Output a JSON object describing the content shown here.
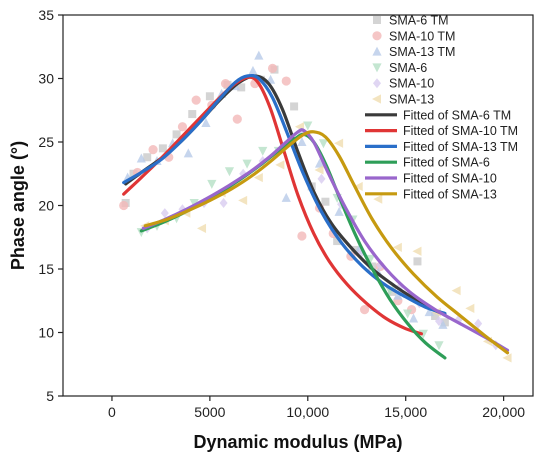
{
  "chart_data": {
    "type": "scatter",
    "xlabel": "Dynamic modulus (MPa)",
    "ylabel": "Phase angle (°)",
    "xlim": [
      -2500,
      21500
    ],
    "ylim": [
      5,
      35
    ],
    "xticks": [
      0,
      5000,
      10000,
      15000,
      20000
    ],
    "xtick_labels": [
      "0",
      "5000",
      "10,000",
      "15,000",
      "20,000"
    ],
    "yticks": [
      5,
      10,
      15,
      20,
      25,
      30,
      35
    ],
    "ytick_labels": [
      "5",
      "10",
      "15",
      "20",
      "25",
      "30",
      "35"
    ],
    "grid": false,
    "legend_position": "top-right",
    "scatter_series": [
      {
        "name": "SMA-6 TM",
        "color": "#c9c9c9",
        "marker": "square",
        "points": [
          [
            700,
            20.2
          ],
          [
            1100,
            22.5
          ],
          [
            1800,
            23.8
          ],
          [
            2600,
            24.5
          ],
          [
            3300,
            25.6
          ],
          [
            4100,
            27.2
          ],
          [
            5000,
            28.6
          ],
          [
            5900,
            29.5
          ],
          [
            6600,
            29.3
          ],
          [
            7600,
            29.9
          ],
          [
            8300,
            30.7
          ],
          [
            9300,
            27.8
          ],
          [
            10200,
            21.5
          ],
          [
            10900,
            20.3
          ],
          [
            11500,
            17.2
          ],
          [
            12400,
            16.5
          ],
          [
            13300,
            15.2
          ],
          [
            14300,
            13.2
          ],
          [
            15600,
            15.6
          ],
          [
            16500,
            11.3
          ],
          [
            17000,
            10.8
          ]
        ]
      },
      {
        "name": "SMA-10 TM",
        "color": "#f2b8b8",
        "marker": "circle",
        "points": [
          [
            600,
            20.0
          ],
          [
            1300,
            22.6
          ],
          [
            2100,
            24.4
          ],
          [
            2900,
            23.8
          ],
          [
            3600,
            26.2
          ],
          [
            4300,
            28.3
          ],
          [
            5100,
            27.9
          ],
          [
            5800,
            29.6
          ],
          [
            6400,
            26.8
          ],
          [
            7300,
            29.6
          ],
          [
            8200,
            30.8
          ],
          [
            8900,
            29.8
          ],
          [
            9700,
            17.6
          ],
          [
            10600,
            19.8
          ],
          [
            11300,
            17.8
          ],
          [
            12200,
            16.0
          ],
          [
            12900,
            11.8
          ],
          [
            13700,
            15.2
          ],
          [
            14600,
            12.5
          ],
          [
            15300,
            11.8
          ]
        ]
      },
      {
        "name": "SMA-13 TM",
        "color": "#b8cbe8",
        "marker": "triangle-up",
        "points": [
          [
            800,
            22.2
          ],
          [
            1500,
            23.7
          ],
          [
            2300,
            23.5
          ],
          [
            3100,
            24.9
          ],
          [
            3900,
            24.1
          ],
          [
            4800,
            26.5
          ],
          [
            5600,
            28.8
          ],
          [
            6300,
            29.4
          ],
          [
            7200,
            30.6
          ],
          [
            7500,
            31.8
          ],
          [
            8100,
            29.9
          ],
          [
            8900,
            20.6
          ],
          [
            9700,
            25.0
          ],
          [
            10600,
            23.3
          ],
          [
            11600,
            19.5
          ],
          [
            12600,
            16.5
          ],
          [
            13600,
            14.7
          ],
          [
            14600,
            12.9
          ],
          [
            15400,
            11.1
          ],
          [
            16200,
            11.6
          ],
          [
            16900,
            10.6
          ]
        ]
      },
      {
        "name": "SMA-6",
        "color": "#b5e0c5",
        "marker": "triangle-down",
        "points": [
          [
            1500,
            17.9
          ],
          [
            2300,
            18.4
          ],
          [
            3300,
            19.0
          ],
          [
            4200,
            20.2
          ],
          [
            5100,
            21.7
          ],
          [
            6000,
            22.7
          ],
          [
            6900,
            23.3
          ],
          [
            7700,
            24.3
          ],
          [
            8500,
            24.3
          ],
          [
            9300,
            25.0
          ],
          [
            10000,
            26.3
          ],
          [
            10800,
            24.9
          ],
          [
            11500,
            20.6
          ],
          [
            12300,
            18.9
          ],
          [
            13200,
            15.8
          ],
          [
            14200,
            13.3
          ],
          [
            15100,
            11.5
          ],
          [
            15900,
            9.9
          ],
          [
            16700,
            9.0
          ]
        ]
      },
      {
        "name": "SMA-10",
        "color": "#d8ccf0",
        "marker": "diamond",
        "points": [
          [
            1800,
            18.2
          ],
          [
            2700,
            19.4
          ],
          [
            3600,
            19.7
          ],
          [
            4700,
            20.2
          ],
          [
            5700,
            20.2
          ],
          [
            6700,
            22.5
          ],
          [
            7700,
            23.5
          ],
          [
            8700,
            24.6
          ],
          [
            9700,
            25.7
          ],
          [
            10700,
            22.1
          ],
          [
            11700,
            20.1
          ],
          [
            12700,
            16.2
          ],
          [
            13700,
            15.3
          ],
          [
            14700,
            13.6
          ],
          [
            15700,
            12.3
          ],
          [
            16700,
            10.9
          ],
          [
            17700,
            11.0
          ],
          [
            18700,
            10.7
          ],
          [
            19600,
            9.0
          ]
        ]
      },
      {
        "name": "SMA-13",
        "color": "#f0ddb0",
        "marker": "triangle-left",
        "points": [
          [
            1700,
            18.4
          ],
          [
            2700,
            18.8
          ],
          [
            3800,
            19.4
          ],
          [
            4600,
            18.2
          ],
          [
            5600,
            21.0
          ],
          [
            6700,
            20.4
          ],
          [
            7500,
            22.2
          ],
          [
            8600,
            23.2
          ],
          [
            9600,
            26.2
          ],
          [
            10600,
            22.8
          ],
          [
            11600,
            24.9
          ],
          [
            12600,
            21.5
          ],
          [
            13600,
            20.5
          ],
          [
            14600,
            16.7
          ],
          [
            15600,
            16.4
          ],
          [
            16600,
            11.6
          ],
          [
            17600,
            13.3
          ],
          [
            18300,
            11.9
          ],
          [
            19200,
            9.3
          ],
          [
            20200,
            8.0
          ]
        ]
      }
    ],
    "fitted_series": [
      {
        "name": "Fitted of SMA-6 TM",
        "color": "#3a3a3a",
        "points": [
          [
            700,
            21.7
          ],
          [
            1500,
            22.6
          ],
          [
            2500,
            23.7
          ],
          [
            3500,
            25.0
          ],
          [
            4500,
            26.6
          ],
          [
            5500,
            28.3
          ],
          [
            6500,
            29.7
          ],
          [
            7300,
            30.2
          ],
          [
            8000,
            29.6
          ],
          [
            8700,
            27.6
          ],
          [
            9500,
            24.2
          ],
          [
            10300,
            21.1
          ],
          [
            11200,
            18.6
          ],
          [
            12200,
            16.7
          ],
          [
            13300,
            15.0
          ],
          [
            14400,
            13.7
          ],
          [
            15500,
            12.6
          ],
          [
            16300,
            11.9
          ],
          [
            17000,
            11.4
          ]
        ]
      },
      {
        "name": "Fitted of SMA-10 TM",
        "color": "#e03535",
        "points": [
          [
            600,
            20.9
          ],
          [
            1500,
            22.2
          ],
          [
            2500,
            23.7
          ],
          [
            3500,
            25.3
          ],
          [
            4500,
            26.9
          ],
          [
            5500,
            28.5
          ],
          [
            6300,
            29.6
          ],
          [
            7000,
            30.1
          ],
          [
            7500,
            29.6
          ],
          [
            8100,
            27.6
          ],
          [
            8800,
            24.2
          ],
          [
            9500,
            20.8
          ],
          [
            10300,
            17.8
          ],
          [
            11100,
            15.6
          ],
          [
            12000,
            13.8
          ],
          [
            13000,
            12.3
          ],
          [
            14000,
            11.1
          ],
          [
            15000,
            10.3
          ],
          [
            15800,
            9.9
          ]
        ]
      },
      {
        "name": "Fitted of SMA-13 TM",
        "color": "#2a6fc9",
        "points": [
          [
            600,
            21.8
          ],
          [
            1500,
            22.6
          ],
          [
            2500,
            23.6
          ],
          [
            3500,
            25.0
          ],
          [
            4500,
            26.6
          ],
          [
            5500,
            28.4
          ],
          [
            6300,
            29.7
          ],
          [
            6900,
            30.2
          ],
          [
            7500,
            30.0
          ],
          [
            8200,
            28.5
          ],
          [
            9000,
            25.5
          ],
          [
            9800,
            22.4
          ],
          [
            10700,
            19.5
          ],
          [
            11700,
            17.1
          ],
          [
            12800,
            15.2
          ],
          [
            13900,
            13.8
          ],
          [
            15000,
            12.8
          ],
          [
            16000,
            12.0
          ],
          [
            17000,
            11.5
          ]
        ]
      },
      {
        "name": "Fitted of SMA-6",
        "color": "#2e9e58",
        "points": [
          [
            1500,
            18.0
          ],
          [
            2500,
            18.6
          ],
          [
            3500,
            19.3
          ],
          [
            4500,
            20.1
          ],
          [
            5500,
            21.0
          ],
          [
            6500,
            22.0
          ],
          [
            7500,
            23.1
          ],
          [
            8500,
            24.3
          ],
          [
            9300,
            25.2
          ],
          [
            9800,
            25.6
          ],
          [
            10300,
            25.0
          ],
          [
            10900,
            23.3
          ],
          [
            11600,
            20.7
          ],
          [
            12400,
            17.8
          ],
          [
            13300,
            15.0
          ],
          [
            14200,
            12.6
          ],
          [
            15100,
            10.7
          ],
          [
            16000,
            9.2
          ],
          [
            17000,
            8.0
          ]
        ]
      },
      {
        "name": "Fitted of SMA-10",
        "color": "#9966cc",
        "points": [
          [
            1600,
            18.2
          ],
          [
            2700,
            18.9
          ],
          [
            3800,
            19.7
          ],
          [
            4900,
            20.6
          ],
          [
            6000,
            21.6
          ],
          [
            7100,
            22.7
          ],
          [
            8100,
            23.9
          ],
          [
            8900,
            25.0
          ],
          [
            9500,
            25.8
          ],
          [
            9800,
            25.9
          ],
          [
            10300,
            25.0
          ],
          [
            11000,
            22.7
          ],
          [
            11900,
            19.9
          ],
          [
            12900,
            17.2
          ],
          [
            14000,
            15.0
          ],
          [
            15200,
            13.2
          ],
          [
            16500,
            11.8
          ],
          [
            17900,
            10.6
          ],
          [
            19200,
            9.5
          ],
          [
            20200,
            8.6
          ]
        ]
      },
      {
        "name": "Fitted of SMA-13",
        "color": "#c69a10",
        "points": [
          [
            1700,
            18.4
          ],
          [
            2800,
            18.9
          ],
          [
            3900,
            19.6
          ],
          [
            5000,
            20.4
          ],
          [
            6100,
            21.3
          ],
          [
            7200,
            22.4
          ],
          [
            8200,
            23.6
          ],
          [
            9100,
            24.8
          ],
          [
            9800,
            25.6
          ],
          [
            10300,
            25.8
          ],
          [
            10900,
            25.4
          ],
          [
            11600,
            23.9
          ],
          [
            12400,
            21.5
          ],
          [
            13300,
            18.9
          ],
          [
            14300,
            16.6
          ],
          [
            15400,
            14.6
          ],
          [
            16600,
            12.8
          ],
          [
            17800,
            11.3
          ],
          [
            19000,
            9.8
          ],
          [
            20200,
            8.4
          ]
        ]
      }
    ]
  }
}
